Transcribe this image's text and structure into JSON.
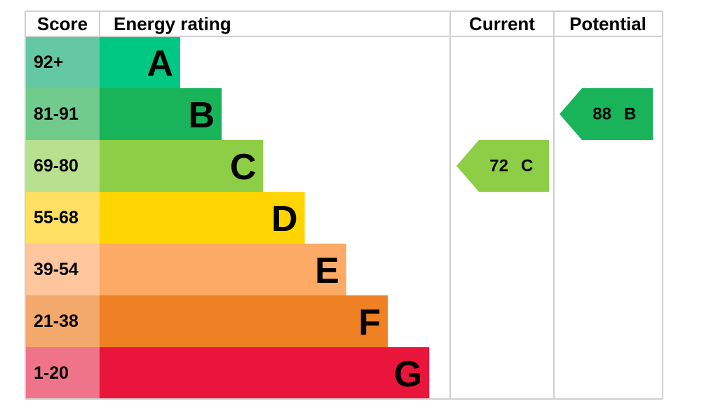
{
  "header": {
    "score": "Score",
    "rating": "Energy rating",
    "current": "Current",
    "potential": "Potential"
  },
  "bands": [
    {
      "range": "92+",
      "letter": "A",
      "color": "#00c781",
      "light": "#63c8a3"
    },
    {
      "range": "81-91",
      "letter": "B",
      "color": "#19b459",
      "light": "#71cb8d"
    },
    {
      "range": "69-80",
      "letter": "C",
      "color": "#8dce46",
      "light": "#b8e08e"
    },
    {
      "range": "55-68",
      "letter": "D",
      "color": "#ffd500",
      "light": "#ffe063"
    },
    {
      "range": "39-54",
      "letter": "E",
      "color": "#fcaa65",
      "light": "#fdc69c"
    },
    {
      "range": "21-38",
      "letter": "F",
      "color": "#ef8023",
      "light": "#f3a96c"
    },
    {
      "range": "1-20",
      "letter": "G",
      "color": "#e9153b",
      "light": "#f07489"
    }
  ],
  "current": {
    "score": 72,
    "letter": "C"
  },
  "potential": {
    "score": 88,
    "letter": "B"
  }
}
